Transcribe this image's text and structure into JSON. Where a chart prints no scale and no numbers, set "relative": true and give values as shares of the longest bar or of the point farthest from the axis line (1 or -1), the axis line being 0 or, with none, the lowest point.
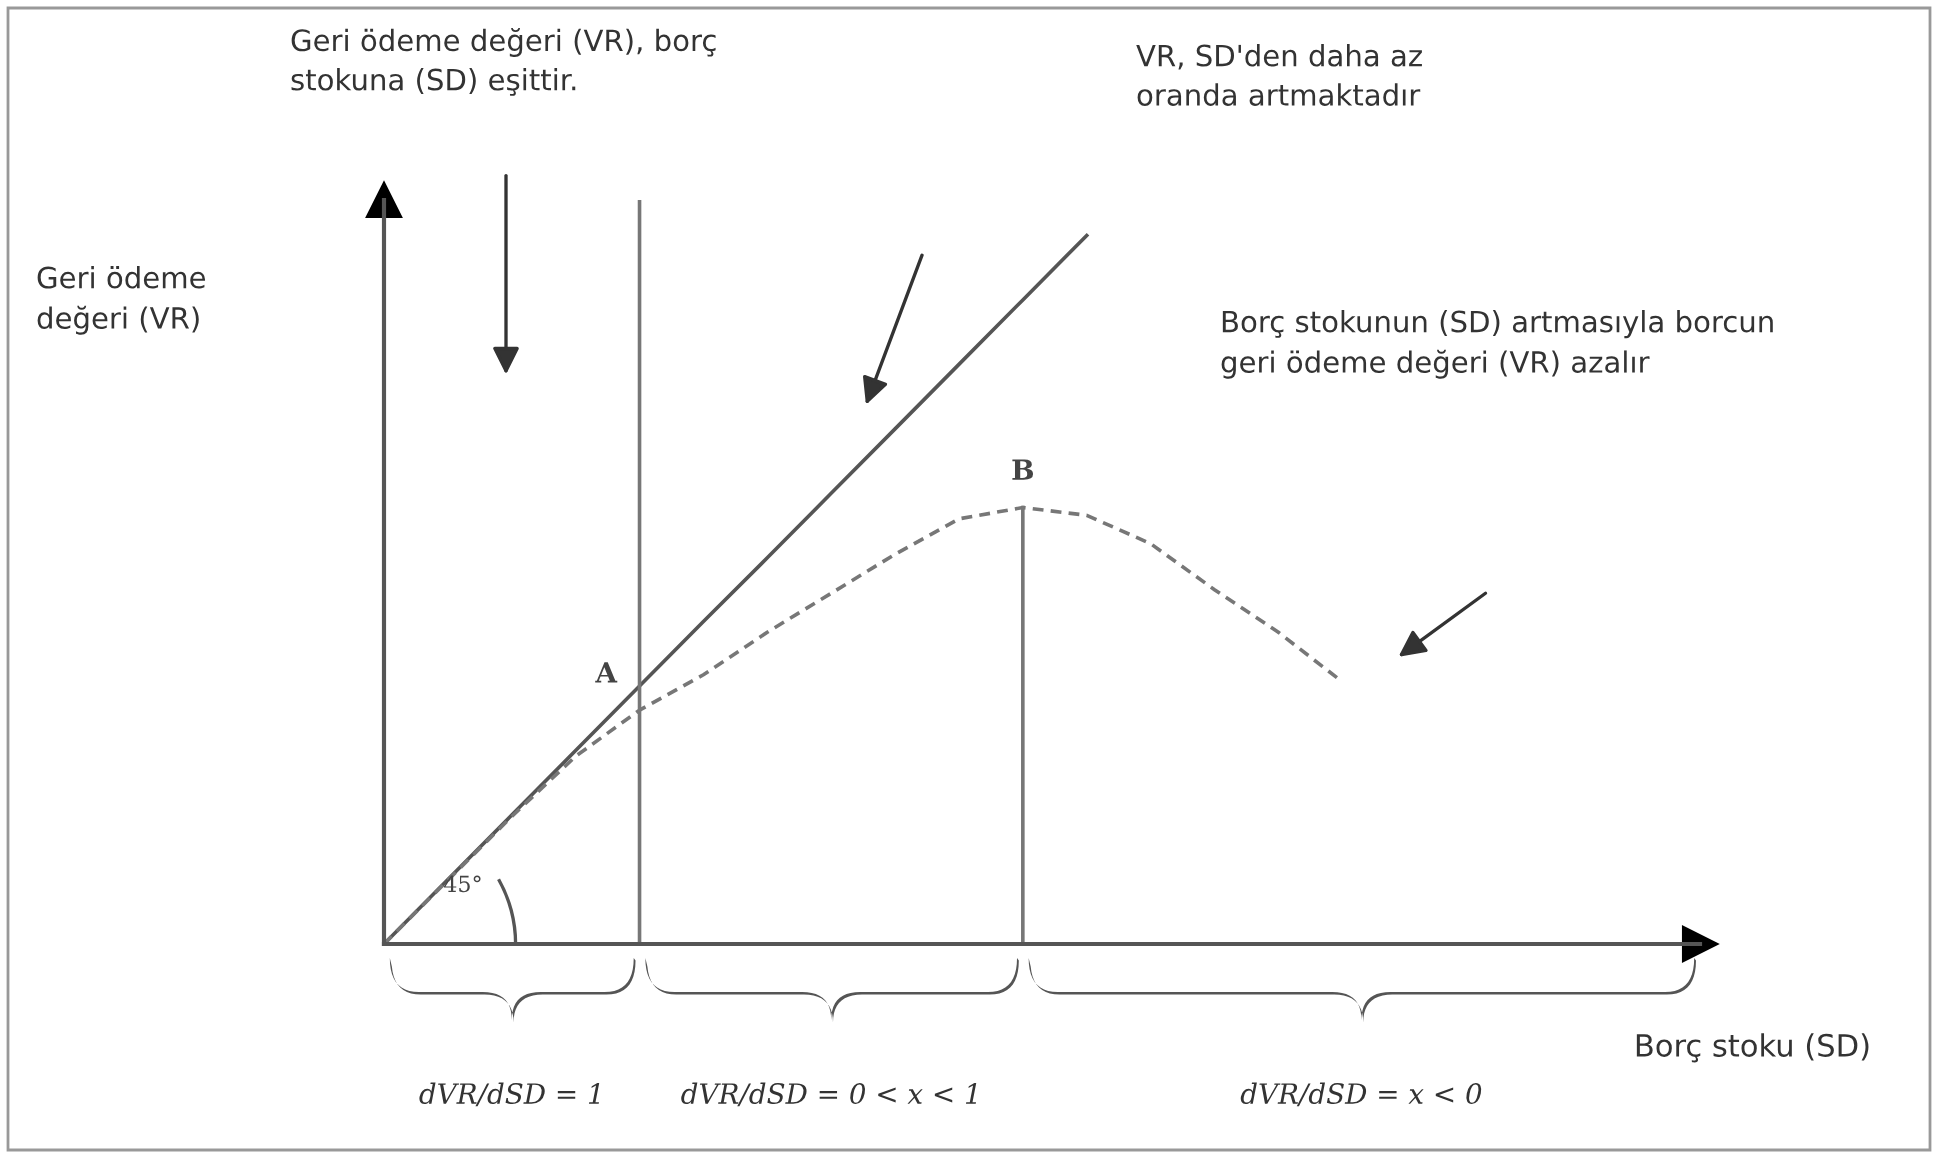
{
  "chart_data": {
    "type": "line",
    "relative": true,
    "xlabel": "Borç stoku (SD)",
    "categories": [
      null,
      null,
      null,
      null,
      null,
      null,
      null,
      null,
      null,
      null,
      null,
      null,
      null,
      null,
      null,
      null,
      null,
      null,
      null,
      null,
      null
    ],
    "series": [
      {
        "color": "#555555",
        "line_style": "solid",
        "values": [
          0,
          0.091,
          0.182,
          0.273,
          0.364,
          0.455,
          0.545,
          0.636,
          0.727,
          0.818,
          0.909,
          1,
          null,
          null,
          null,
          null,
          null,
          null,
          null,
          null,
          null
        ]
      },
      {
        "color": "#777777",
        "line_style": "dashed",
        "values": [
          0,
          0.09,
          0.18,
          0.265,
          0.33,
          0.38,
          0.44,
          0.495,
          0.55,
          0.6,
          0.616,
          0.605,
          0.565,
          0.5,
          0.44,
          0.37,
          null,
          null,
          null,
          null,
          null
        ]
      }
    ],
    "annotations": [
      "Geri ödeme değeri (VR), borç\nstokuna (SD) eşittir.",
      "VR, SD'den daha az\noranda artmaktadır",
      "Borç stokunun (SD) artmasıyla borcun\ngeri ödeme değeri (VR) azalır",
      "A",
      "B",
      "45°",
      "dVR/dSD = 1",
      "dVR/dSD = 0 < x < 1",
      "dVR/dSD = x < 0",
      "Geri ödeme\ndeğeri (VR)"
    ]
  }
}
